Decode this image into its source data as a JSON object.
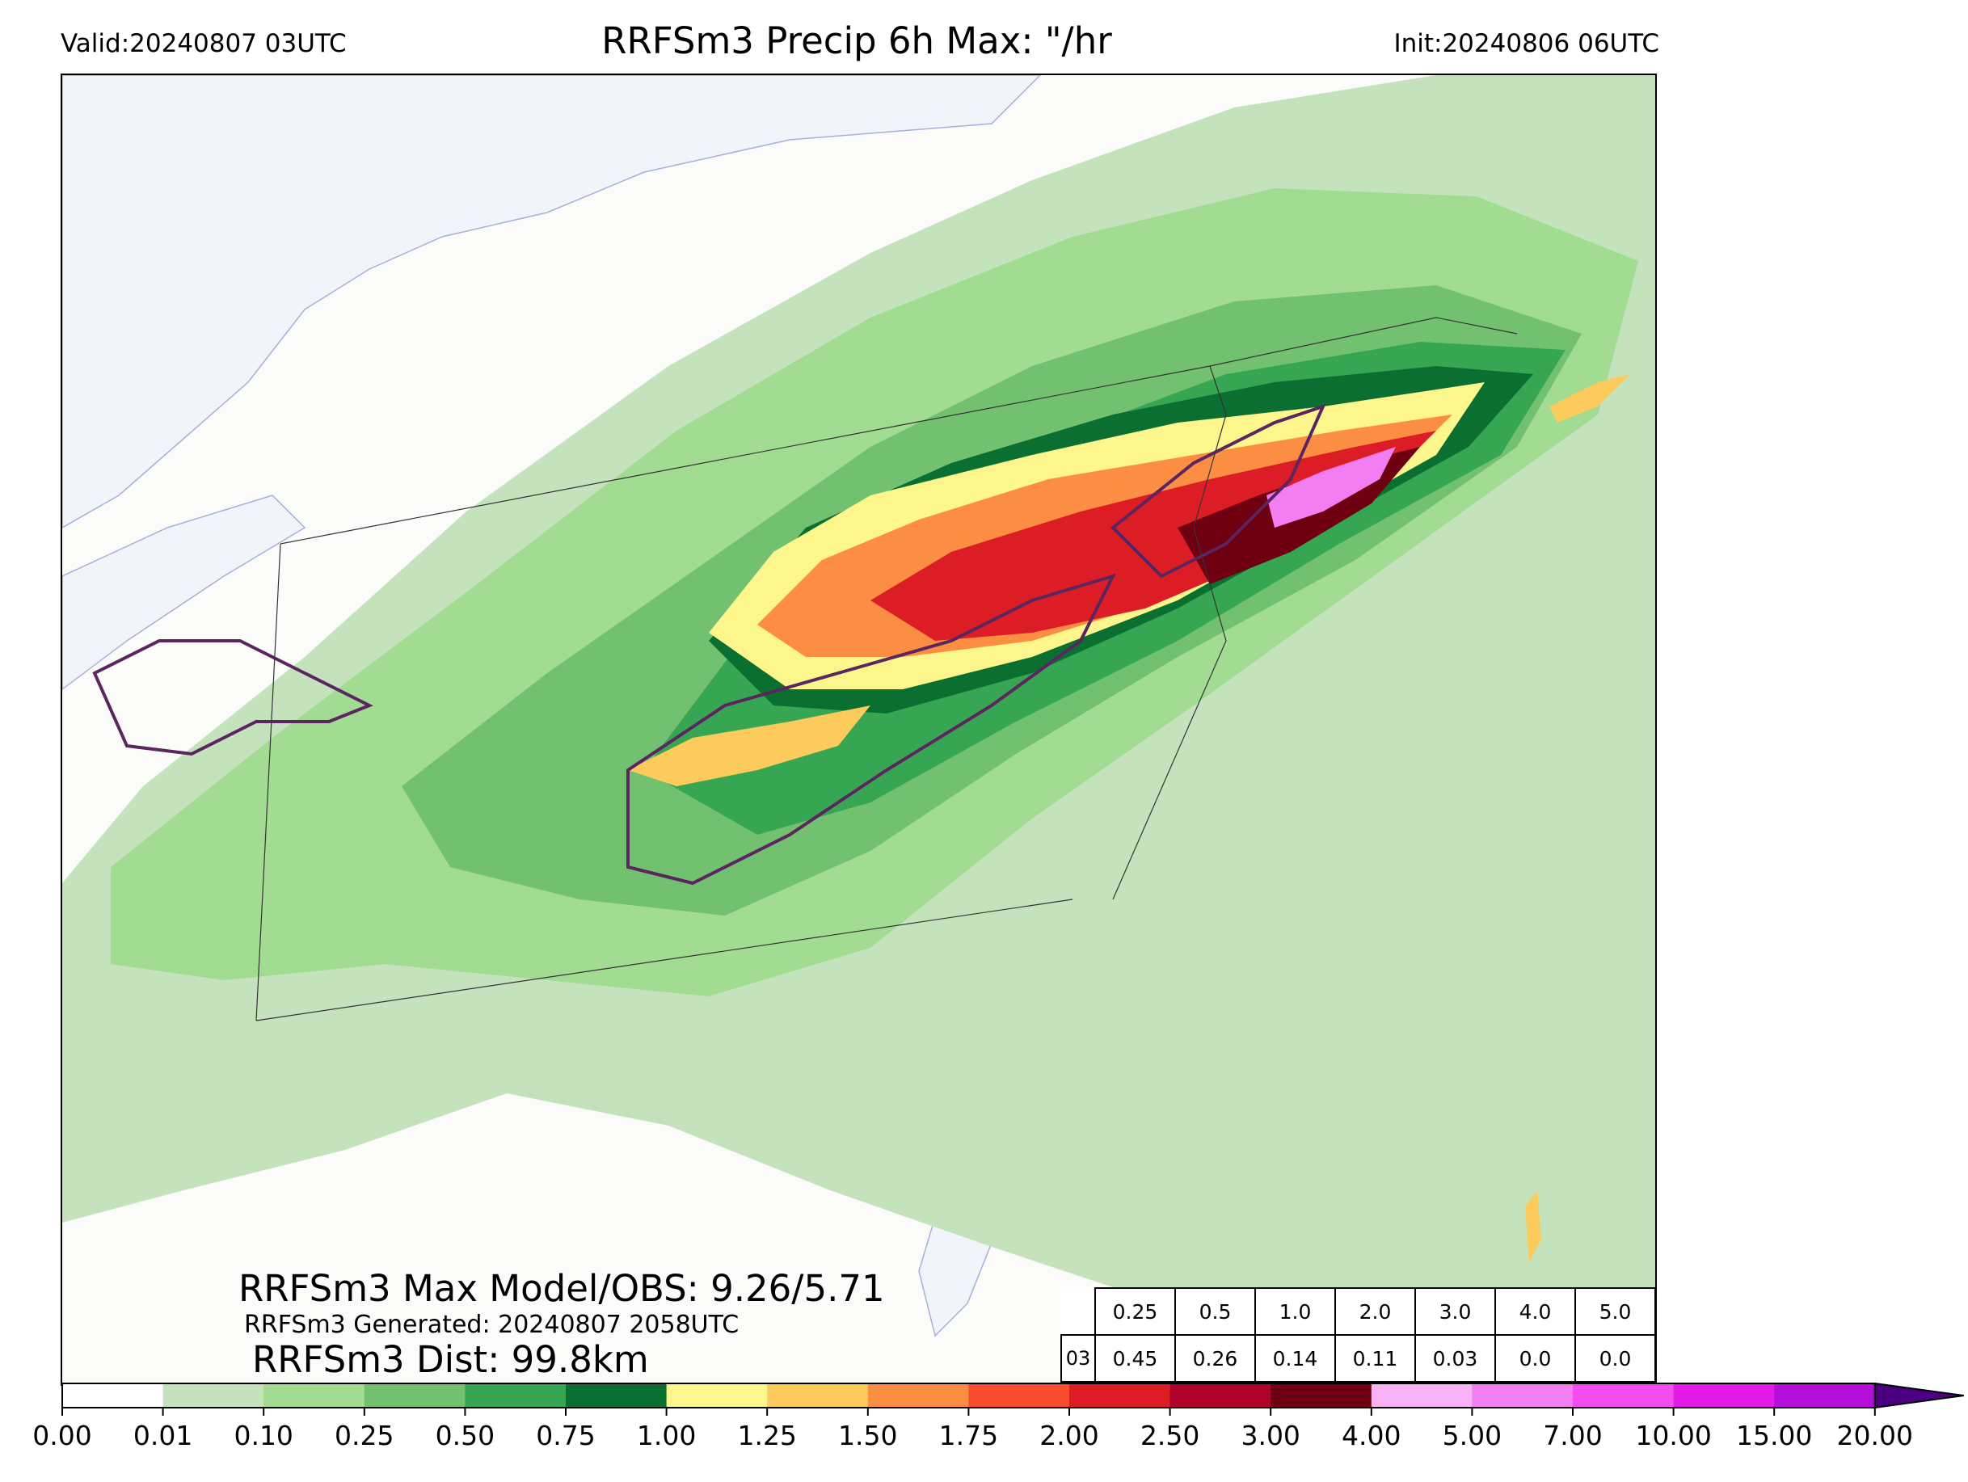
{
  "header": {
    "valid": "Valid:20240807 03UTC",
    "title": "RRFSm3 Precip 6h Max: \"/hr",
    "init": "Init:20240806 06UTC"
  },
  "stats": {
    "max_line": "RRFSm3 Max Model/OBS: 9.26/5.71",
    "generated_line": "RRFSm3 Generated: 20240807 2058UTC",
    "dist_line": "RRFSm3 Dist: 99.8km"
  },
  "threshold_table": {
    "row_label": "03",
    "thresholds": [
      "0.25",
      "0.5",
      "1.0",
      "2.0",
      "3.0",
      "4.0",
      "5.0"
    ],
    "values": [
      "0.45",
      "0.26",
      "0.14",
      "0.11",
      "0.03",
      "0.0",
      "0.0"
    ]
  },
  "colorbar": {
    "ticks": [
      "0.00",
      "0.01",
      "0.10",
      "0.25",
      "0.50",
      "0.75",
      "1.00",
      "1.25",
      "1.50",
      "1.75",
      "2.00",
      "2.50",
      "3.00",
      "4.00",
      "5.00",
      "7.00",
      "10.00",
      "15.00",
      "20.00"
    ],
    "colors": [
      "#ffffff",
      "#c4e3bd",
      "#a1dc92",
      "#71c171",
      "#36a653",
      "#0b6f31",
      "#fdf68c",
      "#fdcb5b",
      "#fc8e43",
      "#fb4b2f",
      "#dc1d25",
      "#b10029",
      "#6e0011",
      "#f8b1f4",
      "#f27ef2",
      "#f24cf2",
      "#e41ae9",
      "#b50ed8",
      "#8b08c8"
    ],
    "extend_color": "#4b0082"
  },
  "map_colors": {
    "water": "#f1f4fa",
    "land": "#fbfbfa",
    "obs_contour": "#5b2560",
    "boundaries": "#333333"
  }
}
